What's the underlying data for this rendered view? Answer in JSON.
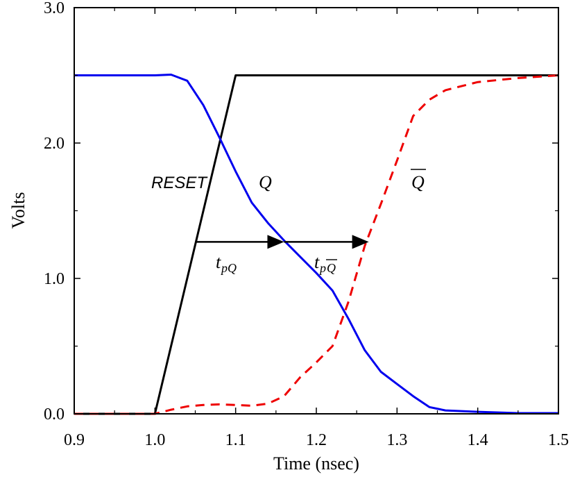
{
  "chart_data": {
    "type": "line",
    "xlabel": "Time (nsec)",
    "ylabel": "Volts",
    "xlim": [
      0.9,
      1.5
    ],
    "ylim": [
      0.0,
      3.0
    ],
    "xticks": [
      "0.9",
      "1.0",
      "1.1",
      "1.2",
      "1.3",
      "1.4",
      "1.5"
    ],
    "yticks": [
      "0.0",
      "1.0",
      "2.0",
      "3.0"
    ],
    "grid": false,
    "series": [
      {
        "name": "RESET",
        "color": "#000000",
        "style": "solid",
        "x": [
          0.9,
          1.0,
          1.1,
          1.5
        ],
        "y": [
          0.0,
          0.0,
          2.5,
          2.5
        ]
      },
      {
        "name": "Q",
        "color": "#0000ee",
        "style": "solid",
        "x": [
          0.9,
          1.0,
          1.02,
          1.04,
          1.06,
          1.08,
          1.1,
          1.12,
          1.14,
          1.16,
          1.18,
          1.2,
          1.22,
          1.24,
          1.26,
          1.28,
          1.3,
          1.32,
          1.34,
          1.36,
          1.4,
          1.45,
          1.5
        ],
        "y": [
          2.5,
          2.5,
          2.505,
          2.46,
          2.28,
          2.04,
          1.79,
          1.56,
          1.41,
          1.28,
          1.16,
          1.04,
          0.91,
          0.7,
          0.47,
          0.31,
          0.22,
          0.13,
          0.05,
          0.025,
          0.015,
          0.005,
          0.005
        ]
      },
      {
        "name": "Q",
        "overline": true,
        "color": "#ee0000",
        "style": "dashed",
        "x": [
          0.9,
          1.0,
          1.02,
          1.04,
          1.06,
          1.08,
          1.1,
          1.12,
          1.14,
          1.16,
          1.18,
          1.2,
          1.22,
          1.24,
          1.26,
          1.28,
          1.3,
          1.32,
          1.34,
          1.36,
          1.4,
          1.45,
          1.5
        ],
        "y": [
          0.0,
          0.0,
          0.03,
          0.055,
          0.065,
          0.07,
          0.065,
          0.06,
          0.075,
          0.13,
          0.27,
          0.38,
          0.5,
          0.83,
          1.24,
          1.55,
          1.87,
          2.2,
          2.32,
          2.39,
          2.45,
          2.48,
          2.5
        ]
      }
    ],
    "annotations": [
      {
        "id": "reset",
        "text": "RESET"
      },
      {
        "id": "q",
        "text": "Q"
      },
      {
        "id": "qbar",
        "text": "Q",
        "overline": true
      },
      {
        "id": "tpq",
        "text": "t",
        "sub": "pQ"
      },
      {
        "id": "tpqbar",
        "text": "t",
        "sub": "p",
        "sub_overline": "Q"
      }
    ],
    "arrows": [
      {
        "name": "tpq-arrow",
        "from": [
          1.05,
          1.27
        ],
        "to": [
          1.16,
          1.27
        ]
      },
      {
        "name": "tpqbar-arrow",
        "from": [
          1.16,
          1.27
        ],
        "to": [
          1.265,
          1.27
        ]
      }
    ]
  }
}
